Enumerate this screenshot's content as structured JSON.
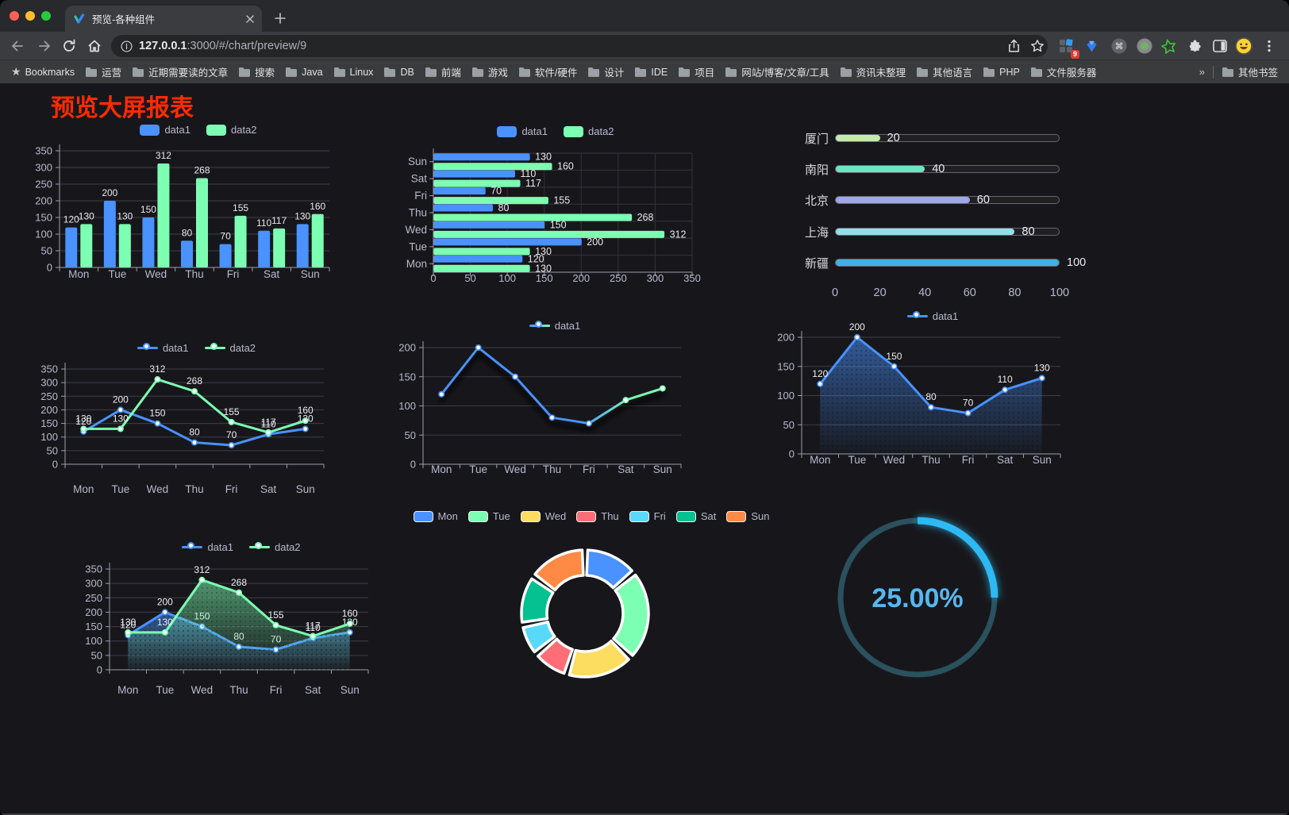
{
  "browser": {
    "tab_title": "预览-各种组件",
    "url_host": "127.0.0.1",
    "url_rest": ":3000/#/chart/preview/9",
    "bookmarks_label": "Bookmarks",
    "bookmarks": [
      "运营",
      "近期需要读的文章",
      "搜索",
      "Java",
      "Linux",
      "DB",
      "前端",
      "游戏",
      "软件/硬件",
      "设计",
      "IDE",
      "项目",
      "网站/博客/文章/工具",
      "资讯未整理",
      "其他语言",
      "PHP",
      "文件服务器"
    ],
    "bookmarks_overflow": "»",
    "other_bookmarks": "其他书签",
    "extension_badge": "9"
  },
  "page": {
    "title": "预览大屏报表",
    "title_color": "#ff2b00"
  },
  "chart_data": [
    {
      "id": "c1",
      "type": "bar",
      "name": "grouped-vertical-bar-chart",
      "categories": [
        "Mon",
        "Tue",
        "Wed",
        "Thu",
        "Fri",
        "Sat",
        "Sun"
      ],
      "series": [
        {
          "name": "data1",
          "color": "#4992ff",
          "values": [
            120,
            200,
            150,
            80,
            70,
            110,
            130
          ]
        },
        {
          "name": "data2",
          "color": "#7cffb2",
          "values": [
            130,
            130,
            312,
            268,
            155,
            117,
            160
          ]
        }
      ],
      "ylim": [
        0,
        350
      ],
      "yticks": [
        0,
        50,
        100,
        150,
        200,
        250,
        300,
        350
      ],
      "legend_position": "top"
    },
    {
      "id": "c2",
      "type": "bar",
      "orientation": "horizontal",
      "name": "grouped-horizontal-bar-chart",
      "categories": [
        "Mon",
        "Tue",
        "Wed",
        "Thu",
        "Fri",
        "Sat",
        "Sun"
      ],
      "display_order_top_to_bottom": [
        "Sun",
        "Sat",
        "Fri",
        "Thu",
        "Wed",
        "Tue",
        "Mon"
      ],
      "series": [
        {
          "name": "data1",
          "color": "#4992ff",
          "values": [
            120,
            200,
            150,
            80,
            70,
            110,
            130
          ]
        },
        {
          "name": "data2",
          "color": "#7cffb2",
          "values": [
            130,
            130,
            312,
            268,
            155,
            117,
            160
          ]
        }
      ],
      "xlim": [
        0,
        350
      ],
      "xticks": [
        0,
        50,
        100,
        150,
        200,
        250,
        300,
        350
      ],
      "legend_position": "top"
    },
    {
      "id": "c3",
      "type": "bar",
      "subtype": "progress",
      "name": "progress-bar-chart",
      "items": [
        {
          "label": "厦门",
          "value": 20,
          "color": "#c4ebad"
        },
        {
          "label": "南阳",
          "value": 40,
          "color": "#6be6c1"
        },
        {
          "label": "北京",
          "value": 60,
          "color": "#a0a7e6"
        },
        {
          "label": "上海",
          "value": 80,
          "color": "#96dee8"
        },
        {
          "label": "新疆",
          "value": 100,
          "color": "#3fb1e3"
        }
      ],
      "xlim": [
        0,
        100
      ],
      "xticks": [
        0,
        20,
        40,
        60,
        80,
        100
      ]
    },
    {
      "id": "c4",
      "type": "line",
      "name": "two-series-line-chart",
      "categories": [
        "Mon",
        "Tue",
        "Wed",
        "Thu",
        "Fri",
        "Sat",
        "Sun"
      ],
      "series": [
        {
          "name": "data1",
          "color": "#4992ff",
          "values": [
            120,
            200,
            150,
            80,
            70,
            110,
            130
          ],
          "point_labels": true
        },
        {
          "name": "data2",
          "color": "#7cffb2",
          "values": [
            130,
            130,
            312,
            268,
            155,
            117,
            160
          ],
          "point_labels": true
        }
      ],
      "ylim": [
        0,
        350
      ],
      "yticks": [
        0,
        50,
        100,
        150,
        200,
        250,
        300,
        350
      ]
    },
    {
      "id": "c5",
      "type": "line",
      "name": "gradient-line-chart",
      "categories": [
        "Mon",
        "Tue",
        "Wed",
        "Thu",
        "Fri",
        "Sat",
        "Sun"
      ],
      "series": [
        {
          "name": "data1",
          "gradient": [
            "#4992ff",
            "#7cffb2"
          ],
          "values": [
            120,
            200,
            150,
            80,
            70,
            110,
            130
          ],
          "point_labels": false,
          "shadow": true
        }
      ],
      "ylim": [
        0,
        200
      ],
      "yticks": [
        0,
        50,
        100,
        150,
        200
      ]
    },
    {
      "id": "c6",
      "type": "area",
      "name": "single-series-area-line-chart",
      "categories": [
        "Mon",
        "Tue",
        "Wed",
        "Thu",
        "Fri",
        "Sat",
        "Sun"
      ],
      "series": [
        {
          "name": "data1",
          "color": "#4992ff",
          "values": [
            120,
            200,
            150,
            80,
            70,
            110,
            130
          ],
          "point_labels": true,
          "area": true
        }
      ],
      "ylim": [
        0,
        200
      ],
      "yticks": [
        0,
        50,
        100,
        150,
        200
      ]
    },
    {
      "id": "c7",
      "type": "area",
      "name": "two-series-area-line-chart",
      "categories": [
        "Mon",
        "Tue",
        "Wed",
        "Thu",
        "Fri",
        "Sat",
        "Sun"
      ],
      "series": [
        {
          "name": "data1",
          "color": "#4992ff",
          "values": [
            120,
            200,
            150,
            80,
            70,
            110,
            130
          ],
          "point_labels": true,
          "area": true
        },
        {
          "name": "data2",
          "color": "#7cffb2",
          "values": [
            130,
            130,
            312,
            268,
            155,
            117,
            160
          ],
          "point_labels": true,
          "area": true
        }
      ],
      "ylim": [
        0,
        350
      ],
      "yticks": [
        0,
        50,
        100,
        150,
        200,
        250,
        300,
        350
      ]
    },
    {
      "id": "c8",
      "type": "pie",
      "subtype": "donut",
      "name": "donut-chart",
      "categories": [
        "Mon",
        "Tue",
        "Wed",
        "Thu",
        "Fri",
        "Sat",
        "Sun"
      ],
      "values": [
        120,
        200,
        150,
        80,
        70,
        110,
        130
      ],
      "colors": [
        "#4992ff",
        "#7cffb2",
        "#fddd60",
        "#ff6e76",
        "#58d9f9",
        "#05c091",
        "#ff8a45"
      ]
    },
    {
      "id": "c9",
      "type": "gauge",
      "name": "circular-progress-gauge",
      "value": 25,
      "label": "25.00%",
      "color": "#2eb9f3",
      "track_color": "#2a515d",
      "text_color": "#58b7ef"
    }
  ]
}
